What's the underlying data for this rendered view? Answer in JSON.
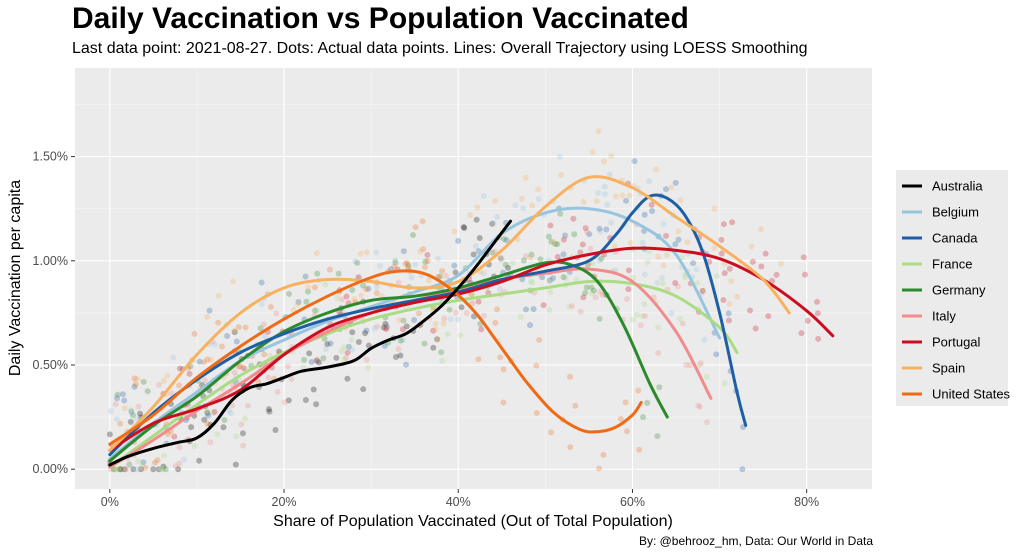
{
  "chart_data": {
    "type": "scatter",
    "title": "Daily Vaccination vs Population Vaccinated",
    "subtitle": "Last data point: 2021-08-27. Dots: Actual data points. Lines: Overall Trajectory using LOESS Smoothing",
    "caption": "By: @behrooz_hm, Data: Our World in Data",
    "xlabel": "Share of Population Vaccinated (Out of Total Population)",
    "ylabel": "Daily Vaccination per capita",
    "xlim": [
      -0.04,
      0.875
    ],
    "ylim": [
      -0.00095,
      0.01925
    ],
    "x_ticks": [
      0,
      0.2,
      0.4,
      0.6,
      0.8
    ],
    "x_tick_labels": [
      "0%",
      "20%",
      "40%",
      "60%",
      "80%"
    ],
    "y_ticks": [
      0,
      0.005,
      0.01,
      0.015
    ],
    "y_tick_labels": [
      "0.00%",
      "0.50%",
      "1.00%",
      "1.50%"
    ],
    "grid": true,
    "legend_position": "right",
    "series": [
      {
        "name": "Australia",
        "color": "#000000",
        "x": [
          0,
          0.02,
          0.05,
          0.08,
          0.1,
          0.12,
          0.14,
          0.16,
          0.18,
          0.2,
          0.22,
          0.25,
          0.28,
          0.3,
          0.32,
          0.34,
          0.36,
          0.38,
          0.4,
          0.42,
          0.44,
          0.46
        ],
        "y": [
          0.0002,
          0.0006,
          0.001,
          0.0013,
          0.0015,
          0.0022,
          0.0033,
          0.0039,
          0.0041,
          0.0044,
          0.0047,
          0.0049,
          0.0052,
          0.0058,
          0.0062,
          0.0065,
          0.0071,
          0.0078,
          0.0087,
          0.0097,
          0.0108,
          0.0119
        ]
      },
      {
        "name": "Belgium",
        "color": "#97c5e0",
        "x": [
          0,
          0.05,
          0.1,
          0.15,
          0.2,
          0.25,
          0.3,
          0.35,
          0.4,
          0.45,
          0.5,
          0.55,
          0.6,
          0.65,
          0.7
        ],
        "y": [
          0.0005,
          0.0022,
          0.0037,
          0.0052,
          0.0062,
          0.0071,
          0.0078,
          0.0085,
          0.0093,
          0.0113,
          0.0123,
          0.0125,
          0.0119,
          0.0103,
          0.0063
        ]
      },
      {
        "name": "Canada",
        "color": "#1d5ea5",
        "x": [
          0,
          0.05,
          0.1,
          0.15,
          0.2,
          0.25,
          0.3,
          0.35,
          0.4,
          0.45,
          0.5,
          0.55,
          0.58,
          0.6,
          0.62,
          0.64,
          0.66,
          0.68,
          0.7,
          0.72,
          0.73
        ],
        "y": [
          0.0007,
          0.0027,
          0.0043,
          0.0056,
          0.0065,
          0.0072,
          0.0077,
          0.0081,
          0.0085,
          0.0091,
          0.0095,
          0.01,
          0.0112,
          0.0123,
          0.0131,
          0.013,
          0.0122,
          0.0105,
          0.0075,
          0.0037,
          0.0021
        ]
      },
      {
        "name": "France",
        "color": "#a9dc84",
        "x": [
          0,
          0.05,
          0.1,
          0.15,
          0.2,
          0.25,
          0.3,
          0.35,
          0.4,
          0.45,
          0.5,
          0.55,
          0.6,
          0.65,
          0.7,
          0.72
        ],
        "y": [
          0.0001,
          0.0016,
          0.0031,
          0.0045,
          0.0056,
          0.0065,
          0.0072,
          0.0077,
          0.0081,
          0.0084,
          0.0087,
          0.009,
          0.0089,
          0.0083,
          0.0068,
          0.0056
        ]
      },
      {
        "name": "Germany",
        "color": "#2b8a2b",
        "x": [
          0,
          0.05,
          0.1,
          0.15,
          0.2,
          0.25,
          0.3,
          0.35,
          0.4,
          0.45,
          0.5,
          0.53,
          0.56,
          0.59,
          0.62,
          0.64
        ],
        "y": [
          0.0004,
          0.0021,
          0.0035,
          0.0052,
          0.0066,
          0.0075,
          0.0081,
          0.0083,
          0.0087,
          0.0093,
          0.0099,
          0.0098,
          0.009,
          0.0069,
          0.0041,
          0.0025
        ]
      },
      {
        "name": "Italy",
        "color": "#f28b8b",
        "x": [
          0,
          0.05,
          0.1,
          0.15,
          0.2,
          0.25,
          0.3,
          0.35,
          0.4,
          0.45,
          0.5,
          0.55,
          0.6,
          0.65,
          0.69
        ],
        "y": [
          0.0001,
          0.0014,
          0.0028,
          0.0041,
          0.0055,
          0.0066,
          0.0075,
          0.0081,
          0.0086,
          0.0091,
          0.0094,
          0.0096,
          0.009,
          0.0066,
          0.0034
        ]
      },
      {
        "name": "Portugal",
        "color": "#cc0d20",
        "x": [
          0,
          0.05,
          0.1,
          0.15,
          0.2,
          0.25,
          0.3,
          0.35,
          0.4,
          0.45,
          0.5,
          0.55,
          0.6,
          0.65,
          0.7,
          0.75,
          0.8,
          0.83
        ],
        "y": [
          0.0009,
          0.0022,
          0.0029,
          0.0038,
          0.0055,
          0.0068,
          0.0075,
          0.008,
          0.0084,
          0.009,
          0.0098,
          0.0103,
          0.0106,
          0.0105,
          0.0101,
          0.0091,
          0.0076,
          0.0064
        ]
      },
      {
        "name": "Spain",
        "color": "#f8b15f",
        "x": [
          0,
          0.05,
          0.1,
          0.15,
          0.2,
          0.25,
          0.3,
          0.35,
          0.4,
          0.45,
          0.5,
          0.55,
          0.6,
          0.65,
          0.7,
          0.75,
          0.78
        ],
        "y": [
          0.0009,
          0.003,
          0.0055,
          0.0075,
          0.0087,
          0.0091,
          0.009,
          0.0087,
          0.009,
          0.0105,
          0.0126,
          0.014,
          0.0135,
          0.0121,
          0.0107,
          0.0091,
          0.0075
        ]
      },
      {
        "name": "United States",
        "color": "#f06a15",
        "x": [
          0,
          0.05,
          0.1,
          0.15,
          0.2,
          0.25,
          0.3,
          0.33,
          0.36,
          0.39,
          0.42,
          0.45,
          0.48,
          0.51,
          0.54,
          0.56,
          0.58,
          0.6,
          0.61
        ],
        "y": [
          0.0012,
          0.0026,
          0.0044,
          0.0059,
          0.0072,
          0.0083,
          0.0092,
          0.0095,
          0.0094,
          0.0087,
          0.0075,
          0.0058,
          0.0041,
          0.0027,
          0.0019,
          0.0018,
          0.002,
          0.0026,
          0.0032
        ]
      }
    ]
  }
}
